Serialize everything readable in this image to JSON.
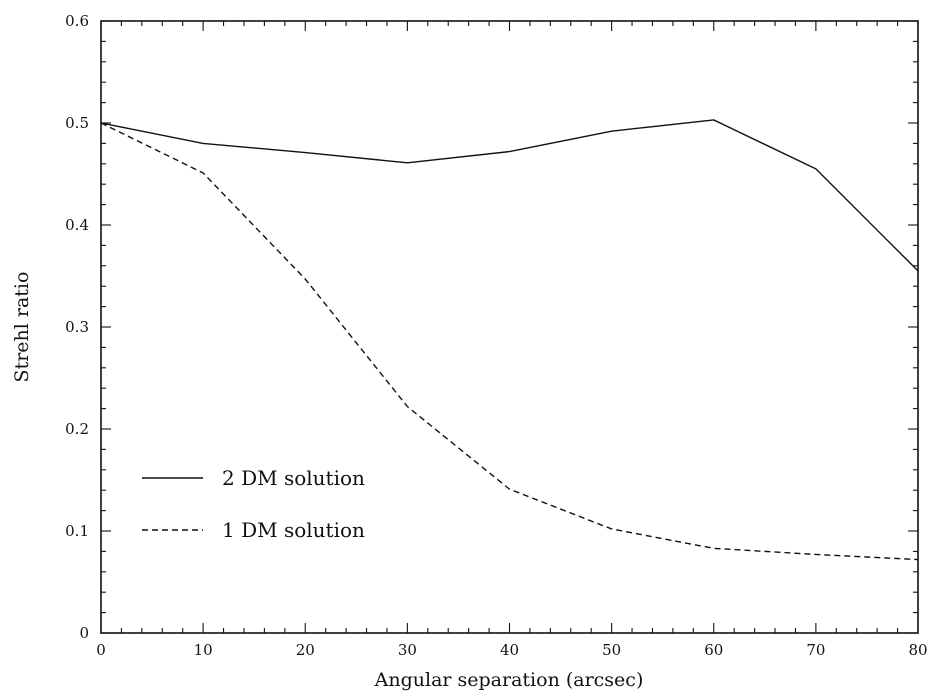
{
  "chart_data": {
    "type": "line",
    "xlabel": "Angular separation (arcsec)",
    "ylabel": "Strehl ratio",
    "xlim": [
      0,
      80
    ],
    "ylim": [
      0,
      0.6
    ],
    "x_ticks": [
      "0",
      "10",
      "20",
      "30",
      "40",
      "50",
      "60",
      "70",
      "80"
    ],
    "y_ticks": [
      "0",
      "0.1",
      "0.2",
      "0.3",
      "0.4",
      "0.5",
      "0.6"
    ],
    "grid": false,
    "legend_position": "lower-left",
    "series": [
      {
        "name": "2 DM solution",
        "style": "solid",
        "color": "#111111",
        "x": [
          0,
          10,
          20,
          30,
          40,
          50,
          60,
          70,
          80
        ],
        "y": [
          0.5,
          0.48,
          0.471,
          0.461,
          0.472,
          0.492,
          0.503,
          0.455,
          0.355
        ]
      },
      {
        "name": "1 DM solution",
        "style": "dashed",
        "color": "#111111",
        "x": [
          0,
          10,
          20,
          30,
          40,
          50,
          60,
          70,
          80
        ],
        "y": [
          0.5,
          0.451,
          0.347,
          0.222,
          0.141,
          0.102,
          0.083,
          0.077,
          0.072
        ]
      }
    ]
  }
}
